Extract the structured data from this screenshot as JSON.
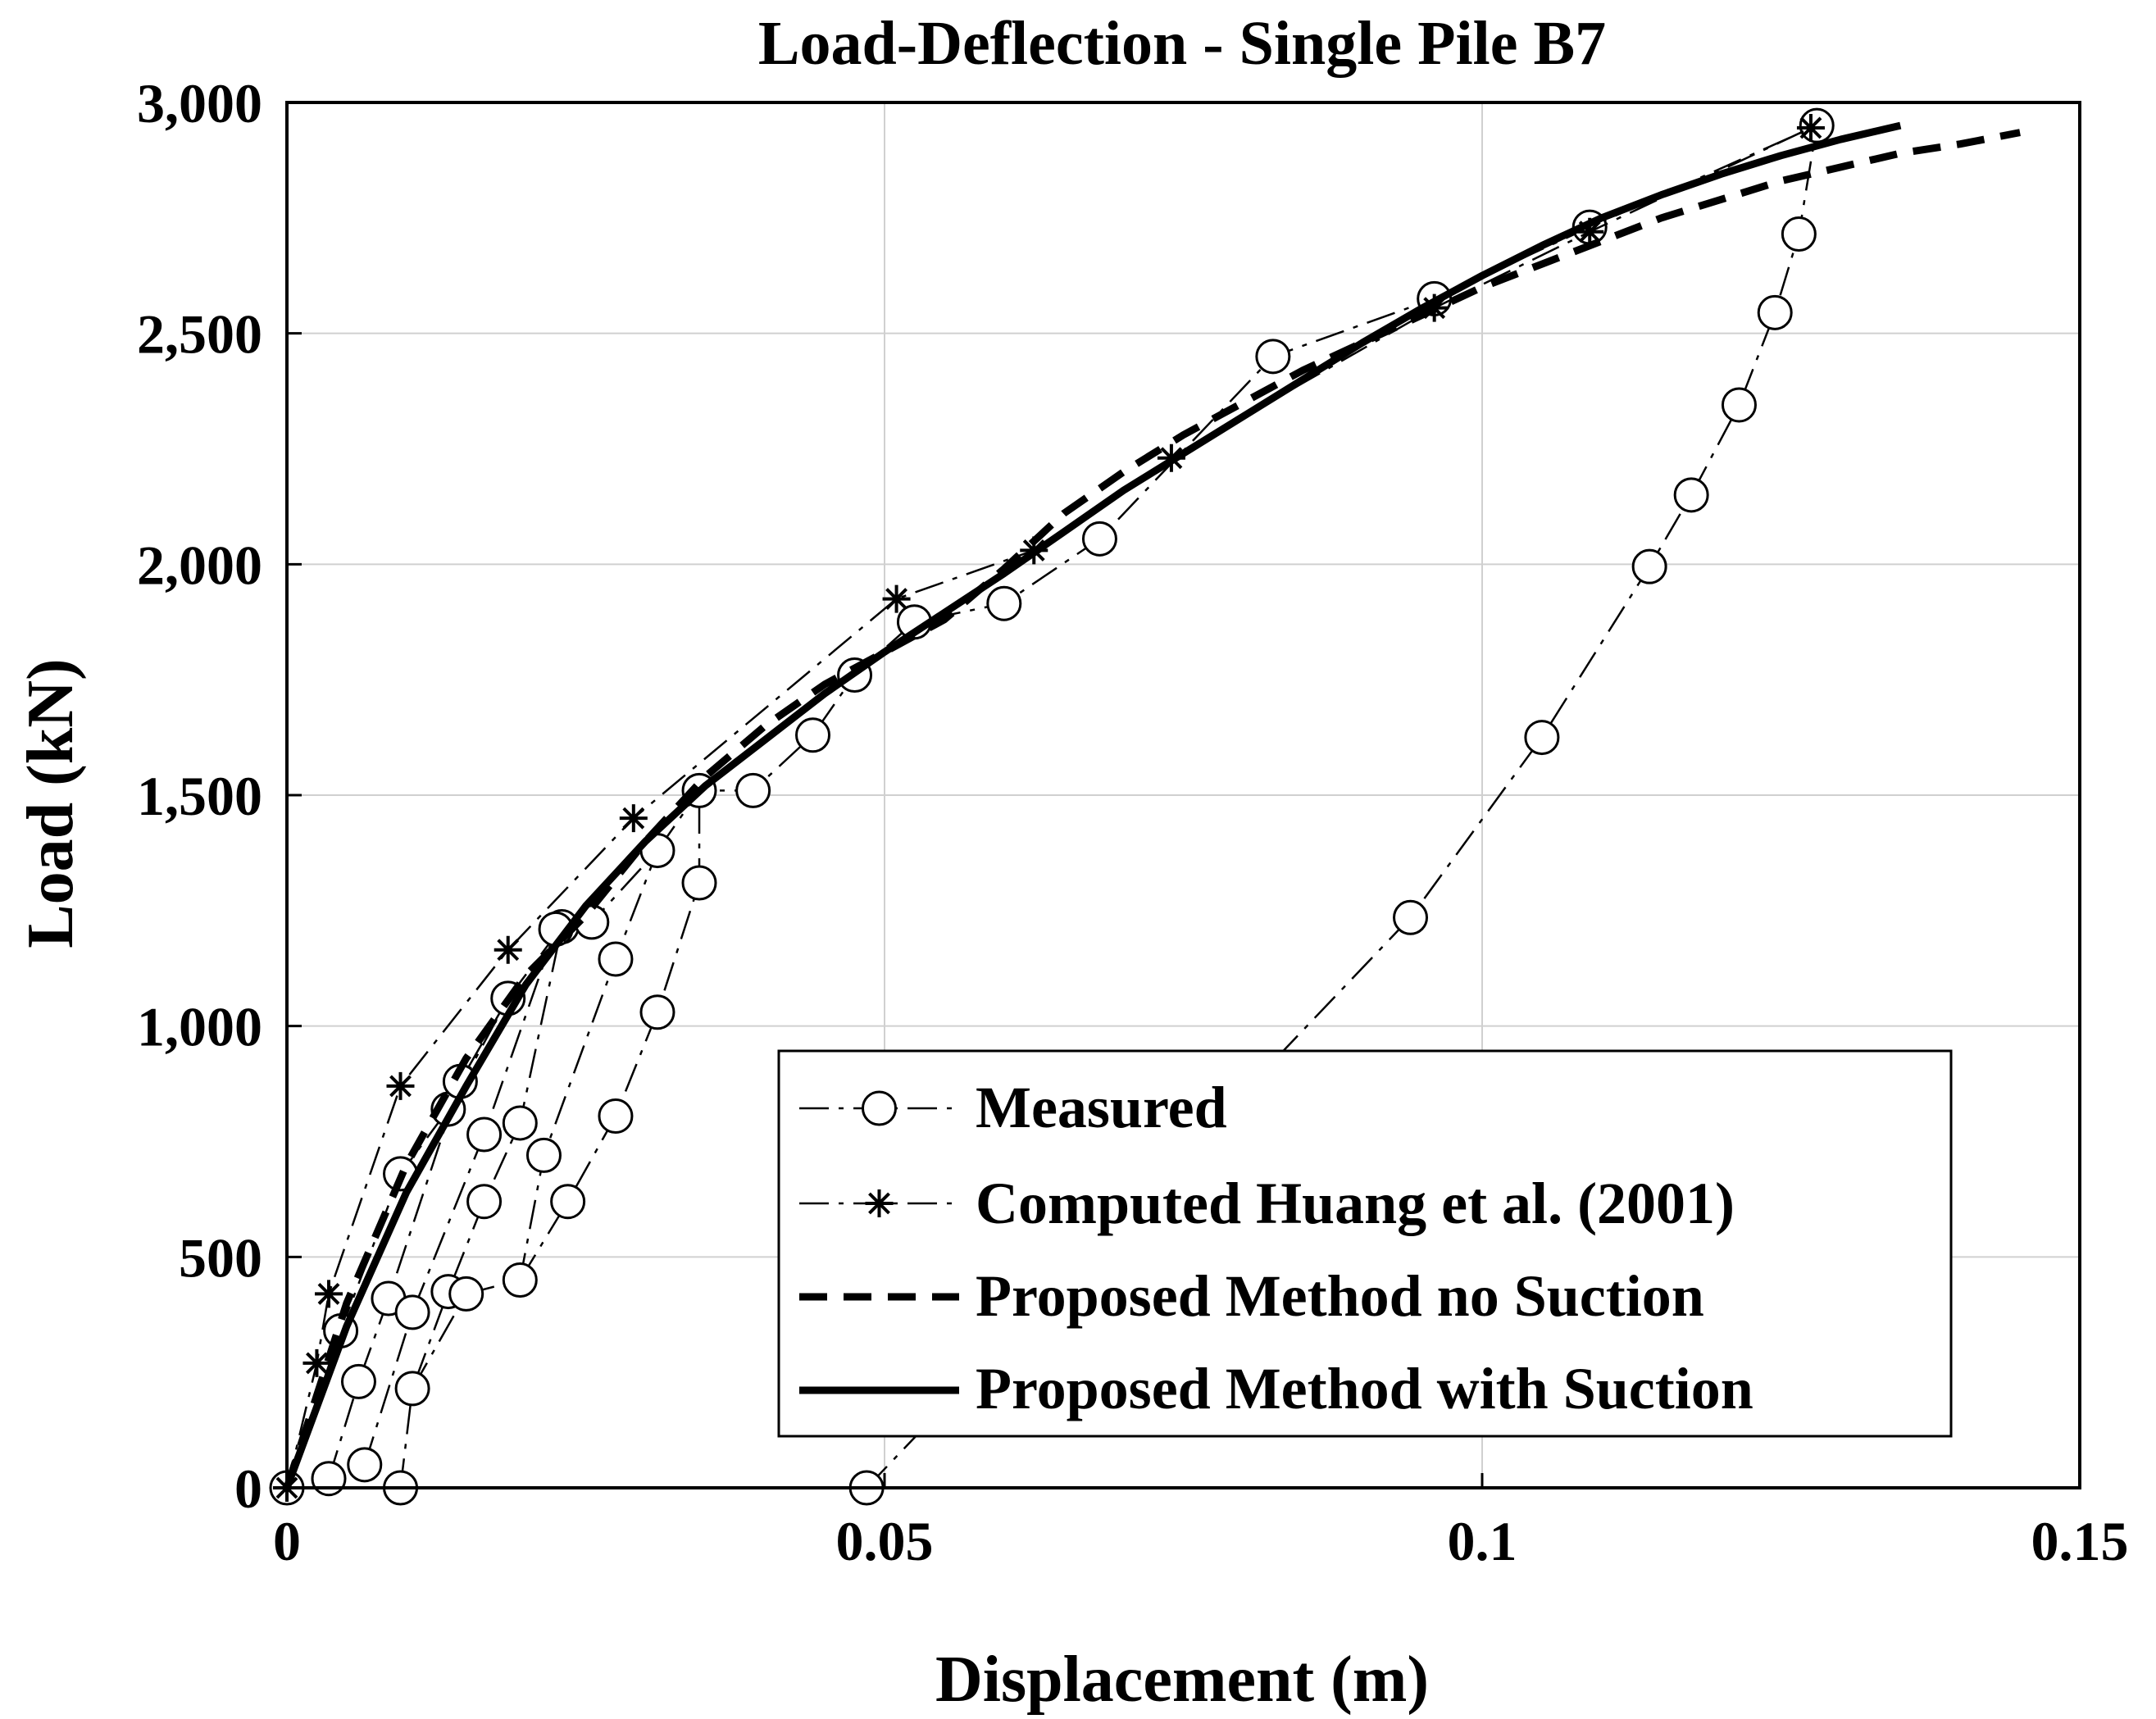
{
  "chart_data": {
    "type": "line",
    "title": "Load-Deflection - Single Pile B7",
    "xlabel": "Displacement (m)",
    "ylabel": "Load (kN)",
    "xlim": [
      0,
      0.15
    ],
    "ylim": [
      0,
      3000
    ],
    "grid": true,
    "legend_position": "bottom-right",
    "x_ticks": [
      0,
      0.05,
      0.1,
      0.15
    ],
    "x_tick_labels": [
      "0",
      "0.05",
      "0.1",
      "0.15"
    ],
    "y_ticks": [
      0,
      500,
      1000,
      1500,
      2000,
      2500,
      3000
    ],
    "y_tick_labels": [
      "0",
      "500",
      "1,000",
      "1,500",
      "2,000",
      "2,500",
      "3,000"
    ],
    "series": [
      {
        "name": "Measured",
        "style": "dash-dot-circle",
        "segments": [
          [
            [
              0,
              0
            ],
            [
              0.0045,
              340
            ],
            [
              0.0095,
              680
            ],
            [
              0.0135,
              820
            ],
            [
              0.0185,
              1060
            ],
            [
              0.023,
              1215
            ],
            [
              0.0255,
              1225
            ],
            [
              0.031,
              1380
            ],
            [
              0.0345,
              1510
            ],
            [
              0.039,
              1510
            ],
            [
              0.044,
              1630
            ],
            [
              0.0475,
              1760
            ],
            [
              0.0525,
              1875
            ],
            [
              0.06,
              1915
            ],
            [
              0.068,
              2055
            ],
            [
              0.0825,
              2450
            ],
            [
              0.096,
              2575
            ],
            [
              0.109,
              2730
            ],
            [
              0.128,
              2950
            ]
          ],
          [
            [
              0.0035,
              20
            ],
            [
              0.006,
              230
            ],
            [
              0.0085,
              410
            ],
            [
              0.0145,
              880
            ],
            [
              0.0185,
              1060
            ]
          ],
          [
            [
              0.0065,
              50
            ],
            [
              0.0105,
              380
            ],
            [
              0.0165,
              765
            ],
            [
              0.0225,
              1210
            ]
          ],
          [
            [
              0.0095,
              0
            ],
            [
              0.0105,
              215
            ],
            [
              0.0135,
              425
            ],
            [
              0.0165,
              620
            ],
            [
              0.0195,
              790
            ],
            [
              0.023,
              1215
            ]
          ],
          [
            [
              0.0105,
              215
            ],
            [
              0.015,
              420
            ],
            [
              0.0195,
              450
            ],
            [
              0.0215,
              720
            ],
            [
              0.0275,
              1145
            ],
            [
              0.031,
              1380
            ]
          ],
          [
            [
              0.0195,
              450
            ],
            [
              0.0235,
              620
            ],
            [
              0.0275,
              805
            ],
            [
              0.031,
              1030
            ],
            [
              0.0345,
              1310
            ],
            [
              0.0345,
              1510
            ]
          ],
          [
            [
              0.0485,
              0
            ],
            [
              0.094,
              1235
            ],
            [
              0.105,
              1625
            ],
            [
              0.114,
              1995
            ],
            [
              0.1175,
              2150
            ],
            [
              0.1215,
              2345
            ],
            [
              0.1245,
              2545
            ],
            [
              0.1265,
              2715
            ],
            [
              0.128,
              2950
            ]
          ]
        ]
      },
      {
        "name": "Computed Huang et al. (2001)",
        "style": "dash-dot-star",
        "segments": [
          [
            [
              0,
              0
            ],
            [
              0.0025,
              270
            ],
            [
              0.0035,
              420
            ],
            [
              0.0095,
              870
            ],
            [
              0.0185,
              1165
            ],
            [
              0.029,
              1450
            ],
            [
              0.051,
              1925
            ],
            [
              0.0625,
              2030
            ],
            [
              0.074,
              2230
            ],
            [
              0.096,
              2555
            ],
            [
              0.109,
              2720
            ],
            [
              0.1275,
              2945
            ]
          ]
        ]
      },
      {
        "name": "Proposed Method no Suction",
        "style": "thick-dashed",
        "x": [
          0,
          0.005,
          0.01,
          0.015,
          0.02,
          0.025,
          0.03,
          0.035,
          0.04,
          0.045,
          0.05,
          0.055,
          0.06,
          0.065,
          0.07,
          0.075,
          0.08,
          0.085,
          0.09,
          0.095,
          0.1,
          0.105,
          0.11,
          0.115,
          0.12,
          0.125,
          0.13,
          0.135,
          0.14,
          0.145
        ],
        "y": [
          0,
          400,
          700,
          930,
          1110,
          1240,
          1400,
          1540,
          1650,
          1740,
          1810,
          1880,
          1990,
          2110,
          2200,
          2280,
          2350,
          2420,
          2480,
          2540,
          2600,
          2650,
          2700,
          2750,
          2790,
          2830,
          2860,
          2890,
          2910,
          2935
        ]
      },
      {
        "name": "Proposed Method with Suction",
        "style": "thick-solid",
        "x": [
          0,
          0.005,
          0.01,
          0.015,
          0.02,
          0.025,
          0.03,
          0.035,
          0.04,
          0.045,
          0.05,
          0.055,
          0.06,
          0.065,
          0.07,
          0.075,
          0.08,
          0.085,
          0.09,
          0.095,
          0.1,
          0.105,
          0.11,
          0.115,
          0.12,
          0.125,
          0.13,
          0.135
        ],
        "y": [
          0,
          350,
          640,
          870,
          1090,
          1260,
          1400,
          1520,
          1620,
          1720,
          1810,
          1895,
          1980,
          2070,
          2160,
          2240,
          2320,
          2400,
          2480,
          2555,
          2625,
          2690,
          2750,
          2800,
          2845,
          2885,
          2920,
          2950
        ]
      }
    ]
  }
}
